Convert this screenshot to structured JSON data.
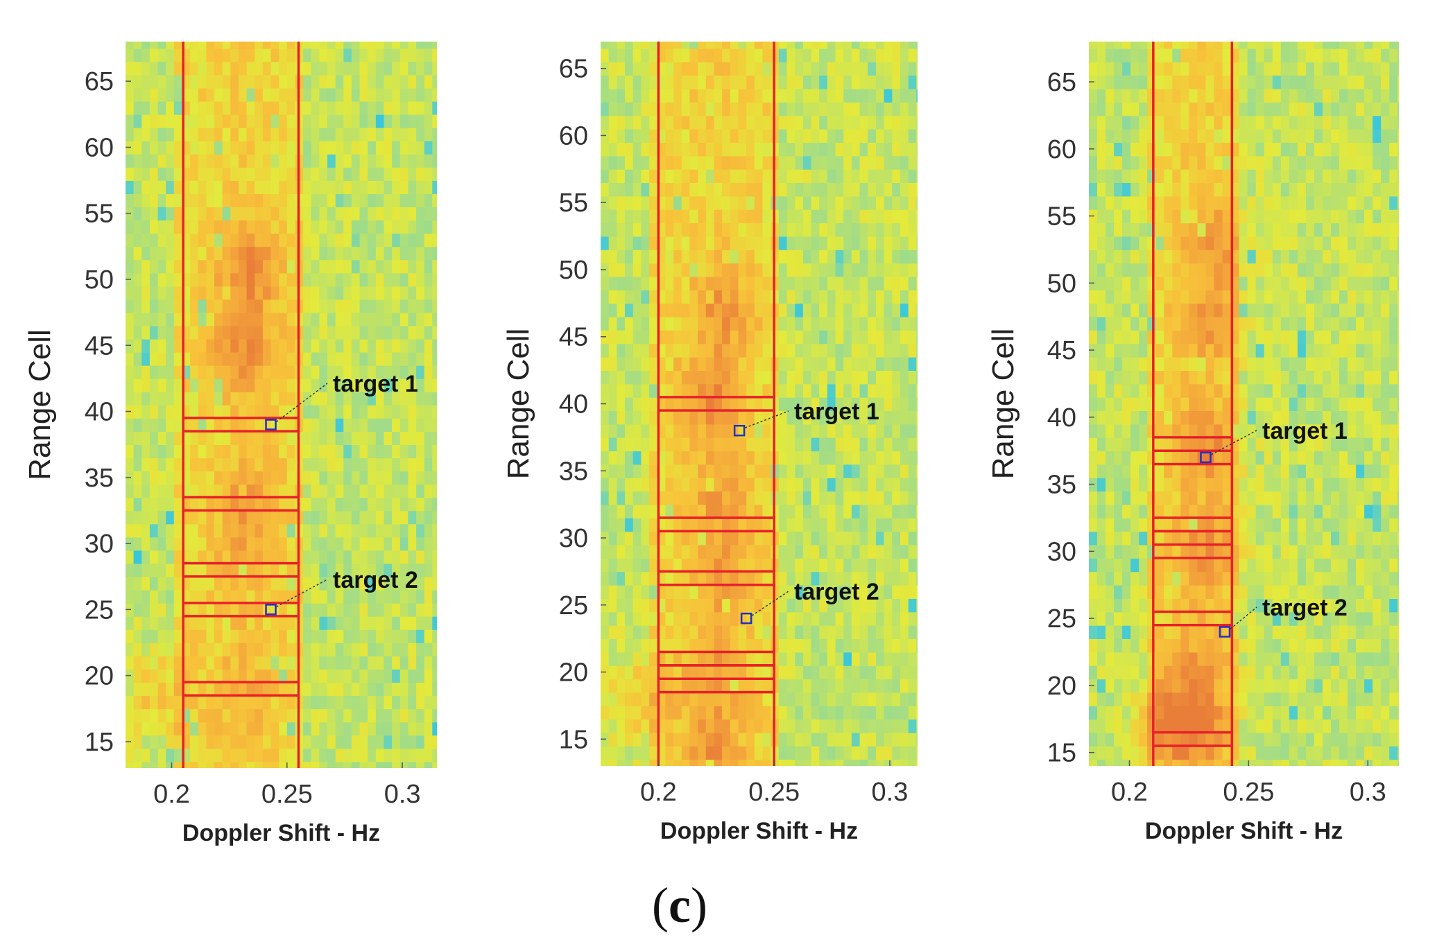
{
  "caption": {
    "open": "(",
    "letter": "c",
    "close": ")"
  },
  "colors": {
    "detection_line": "#e8202a",
    "target_marker": "#2030c0",
    "leader_line": "#333333",
    "colormap": [
      "#19bff2",
      "#6cd3b8",
      "#a6dd83",
      "#e3ea3c",
      "#f7c33a",
      "#f3a33b",
      "#e97e38"
    ]
  },
  "chart_data": [
    {
      "type": "heatmap",
      "xlabel": "Doppler Shift - Hz",
      "ylabel": "Range Cell",
      "xlim": [
        0.18,
        0.315
      ],
      "ylim": [
        13,
        68
      ],
      "xticks": [
        0.2,
        0.25,
        0.3
      ],
      "xtick_labels": [
        "0.2",
        "0.25",
        "0.3"
      ],
      "yticks": [
        15,
        20,
        25,
        30,
        35,
        40,
        45,
        50,
        55,
        60,
        65
      ],
      "ytick_labels": [
        "15",
        "20",
        "25",
        "30",
        "35",
        "40",
        "45",
        "50",
        "55",
        "60",
        "65"
      ],
      "doppler_band": [
        0.205,
        0.255
      ],
      "detected_range_cells": [
        19,
        25,
        28,
        33,
        39
      ],
      "targets": [
        {
          "label": "target 1",
          "doppler": 0.243,
          "range_cell": 39
        },
        {
          "label": "target 2",
          "doppler": 0.243,
          "range_cell": 25
        }
      ],
      "hot_regions": [
        {
          "doppler": 0.232,
          "range_cell": 50.5,
          "intensity": 1.0
        },
        {
          "doppler": 0.228,
          "range_cell": 44.5,
          "intensity": 1.0
        },
        {
          "doppler": 0.232,
          "range_cell": 33,
          "intensity": 0.75
        },
        {
          "doppler": 0.193,
          "range_cell": 18.5,
          "intensity": 0.7
        },
        {
          "doppler": 0.23,
          "range_cell": 19,
          "intensity": 0.5
        },
        {
          "doppler": 0.23,
          "range_cell": 28,
          "intensity": 0.45
        }
      ]
    },
    {
      "type": "heatmap",
      "xlabel": "Doppler Shift - Hz",
      "ylabel": "Range Cell",
      "xlim": [
        0.175,
        0.312
      ],
      "ylim": [
        13,
        67
      ],
      "xticks": [
        0.2,
        0.25,
        0.3
      ],
      "xtick_labels": [
        "0.2",
        "0.25",
        "0.3"
      ],
      "yticks": [
        15,
        20,
        25,
        30,
        35,
        40,
        45,
        50,
        55,
        60,
        65
      ],
      "ytick_labels": [
        "15",
        "20",
        "25",
        "30",
        "35",
        "40",
        "45",
        "50",
        "55",
        "60",
        "65"
      ],
      "doppler_band": [
        0.2,
        0.25
      ],
      "detected_range_cells": [
        19,
        20,
        21,
        27,
        31,
        40
      ],
      "targets": [
        {
          "label": "target 1",
          "doppler": 0.235,
          "range_cell": 38
        },
        {
          "label": "target 2",
          "doppler": 0.238,
          "range_cell": 24
        }
      ],
      "hot_regions": [
        {
          "doppler": 0.22,
          "range_cell": 40.5,
          "intensity": 1.0
        },
        {
          "doppler": 0.226,
          "range_cell": 47,
          "intensity": 0.8
        },
        {
          "doppler": 0.225,
          "range_cell": 33,
          "intensity": 0.7
        },
        {
          "doppler": 0.225,
          "range_cell": 27,
          "intensity": 0.7
        },
        {
          "doppler": 0.222,
          "range_cell": 20,
          "intensity": 0.7
        },
        {
          "doppler": 0.19,
          "range_cell": 18,
          "intensity": 0.7
        },
        {
          "doppler": 0.222,
          "range_cell": 14,
          "intensity": 0.8
        }
      ]
    },
    {
      "type": "heatmap",
      "xlabel": "Doppler Shift - Hz",
      "ylabel": "Range Cell",
      "xlim": [
        0.183,
        0.313
      ],
      "ylim": [
        14,
        68
      ],
      "xticks": [
        0.2,
        0.25,
        0.3
      ],
      "xtick_labels": [
        "0.2",
        "0.25",
        "0.3"
      ],
      "yticks": [
        15,
        20,
        25,
        30,
        35,
        40,
        45,
        50,
        55,
        60,
        65
      ],
      "ytick_labels": [
        "15",
        "20",
        "25",
        "30",
        "35",
        "40",
        "45",
        "50",
        "55",
        "60",
        "65"
      ],
      "doppler_band": [
        0.21,
        0.243
      ],
      "detected_range_cells": [
        16,
        25,
        30,
        31,
        32,
        37,
        38
      ],
      "targets": [
        {
          "label": "target 1",
          "doppler": 0.232,
          "range_cell": 37
        },
        {
          "label": "target 2",
          "doppler": 0.24,
          "range_cell": 24
        }
      ],
      "hot_regions": [
        {
          "doppler": 0.23,
          "range_cell": 38,
          "intensity": 1.0
        },
        {
          "doppler": 0.231,
          "range_cell": 30,
          "intensity": 0.9
        },
        {
          "doppler": 0.232,
          "range_cell": 47,
          "intensity": 0.8
        },
        {
          "doppler": 0.235,
          "range_cell": 53,
          "intensity": 0.8
        },
        {
          "doppler": 0.226,
          "range_cell": 17,
          "intensity": 1.0
        },
        {
          "doppler": 0.215,
          "range_cell": 17.5,
          "intensity": 0.9
        },
        {
          "doppler": 0.228,
          "range_cell": 22,
          "intensity": 0.6
        }
      ]
    }
  ]
}
